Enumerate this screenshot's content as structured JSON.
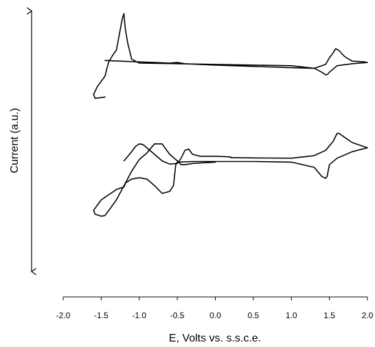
{
  "chart_data": {
    "type": "line",
    "title": "",
    "xlabel": "E, Volts vs. s.s.c.e.",
    "ylabel": "Current (a.u.)",
    "xlim": [
      -2.0,
      2.0
    ],
    "ylim": [
      0,
      20
    ],
    "y_axis_ticks": false,
    "grid": false,
    "x_ticks": [
      "-2.0",
      "-1.5",
      "-1.0",
      "-0.5",
      "0.0",
      "0.5",
      "1.0",
      "1.5",
      "2.0"
    ],
    "series": [
      {
        "x": [
          -1.45,
          -1.25,
          -1.05,
          -0.8,
          -0.6,
          -0.5,
          -0.4,
          0.0,
          0.5,
          1.0,
          1.3,
          1.45,
          1.5,
          1.55,
          1.58,
          1.62,
          1.7,
          1.8,
          1.95,
          2.0,
          1.8,
          1.6,
          1.5,
          1.48,
          1.45,
          1.4,
          1.3,
          1.0,
          0.5,
          0.0,
          -0.5,
          -1.0,
          -1.1,
          -1.15,
          -1.18,
          -1.2,
          -1.2,
          -1.22,
          -1.3,
          -1.35,
          -1.4,
          -1.42,
          -1.45,
          -1.55,
          -1.6,
          -1.58,
          -1.5,
          -1.45
        ],
        "y": [
          16.2,
          16.15,
          16.1,
          16.05,
          16.0,
          16.05,
          15.95,
          15.85,
          15.75,
          15.65,
          15.6,
          15.9,
          16.4,
          16.8,
          17.1,
          17.0,
          16.5,
          16.15,
          16.1,
          16.05,
          15.95,
          15.8,
          15.3,
          15.15,
          15.1,
          15.3,
          15.6,
          15.8,
          15.85,
          15.9,
          15.95,
          16.0,
          16.3,
          17.5,
          18.5,
          19.6,
          19.8,
          19.5,
          17.0,
          16.6,
          16.1,
          15.7,
          15.0,
          14.2,
          13.6,
          13.3,
          13.35,
          13.4
        ]
      },
      {
        "x": [
          -1.2,
          -1.1,
          -1.05,
          -1.0,
          -0.95,
          -0.9,
          -0.8,
          -0.7,
          -0.6,
          -0.5,
          -0.45,
          -0.4,
          -0.35,
          -0.3,
          -0.2,
          0.0,
          0.2
        ],
        "y": [
          8.5,
          9.2,
          9.6,
          9.8,
          9.75,
          9.5,
          9.0,
          8.5,
          8.25,
          8.3,
          8.7,
          9.3,
          9.4,
          9.0,
          8.85,
          8.85,
          8.8
        ],
        "z": []
      },
      {
        "x": [
          0.2,
          0.5,
          1.0,
          1.3,
          1.45,
          1.55,
          1.6,
          1.63,
          1.7,
          1.8,
          1.95,
          2.0,
          1.8,
          1.6,
          1.5,
          1.47,
          1.45,
          1.4,
          1.3,
          1.0,
          0.5,
          0.0,
          -0.3,
          -0.5,
          -0.52,
          -0.55,
          -0.6,
          -0.7,
          -0.8,
          -0.9,
          -1.0,
          -1.1,
          -1.18,
          -1.2,
          -1.25,
          -1.3,
          -1.35,
          -1.4,
          -1.45,
          -1.5,
          -1.55,
          -1.6,
          -1.58,
          -1.5,
          -1.45,
          -1.3,
          -1.2,
          -1.1,
          -1.0,
          -0.9,
          -0.8,
          -0.7,
          -0.6,
          -0.5,
          -0.45,
          -0.4,
          -0.3,
          0.0
        ],
        "y": [
          8.75,
          8.72,
          8.7,
          8.9,
          9.3,
          10.0,
          10.6,
          10.6,
          10.3,
          9.9,
          9.6,
          9.5,
          9.2,
          8.7,
          8.2,
          7.3,
          7.15,
          7.3,
          8.0,
          8.4,
          8.45,
          8.45,
          8.45,
          8.4,
          8.2,
          6.6,
          6.15,
          6.0,
          6.6,
          7.1,
          7.2,
          7.1,
          6.8,
          6.5,
          6.4,
          6.3,
          6.1,
          5.9,
          5.7,
          5.5,
          5.1,
          4.7,
          4.4,
          4.25,
          4.3,
          5.5,
          6.6,
          7.7,
          8.6,
          9.1,
          9.8,
          9.8,
          9.0,
          8.5,
          8.2,
          8.2,
          8.3,
          8.4
        ]
      }
    ]
  }
}
